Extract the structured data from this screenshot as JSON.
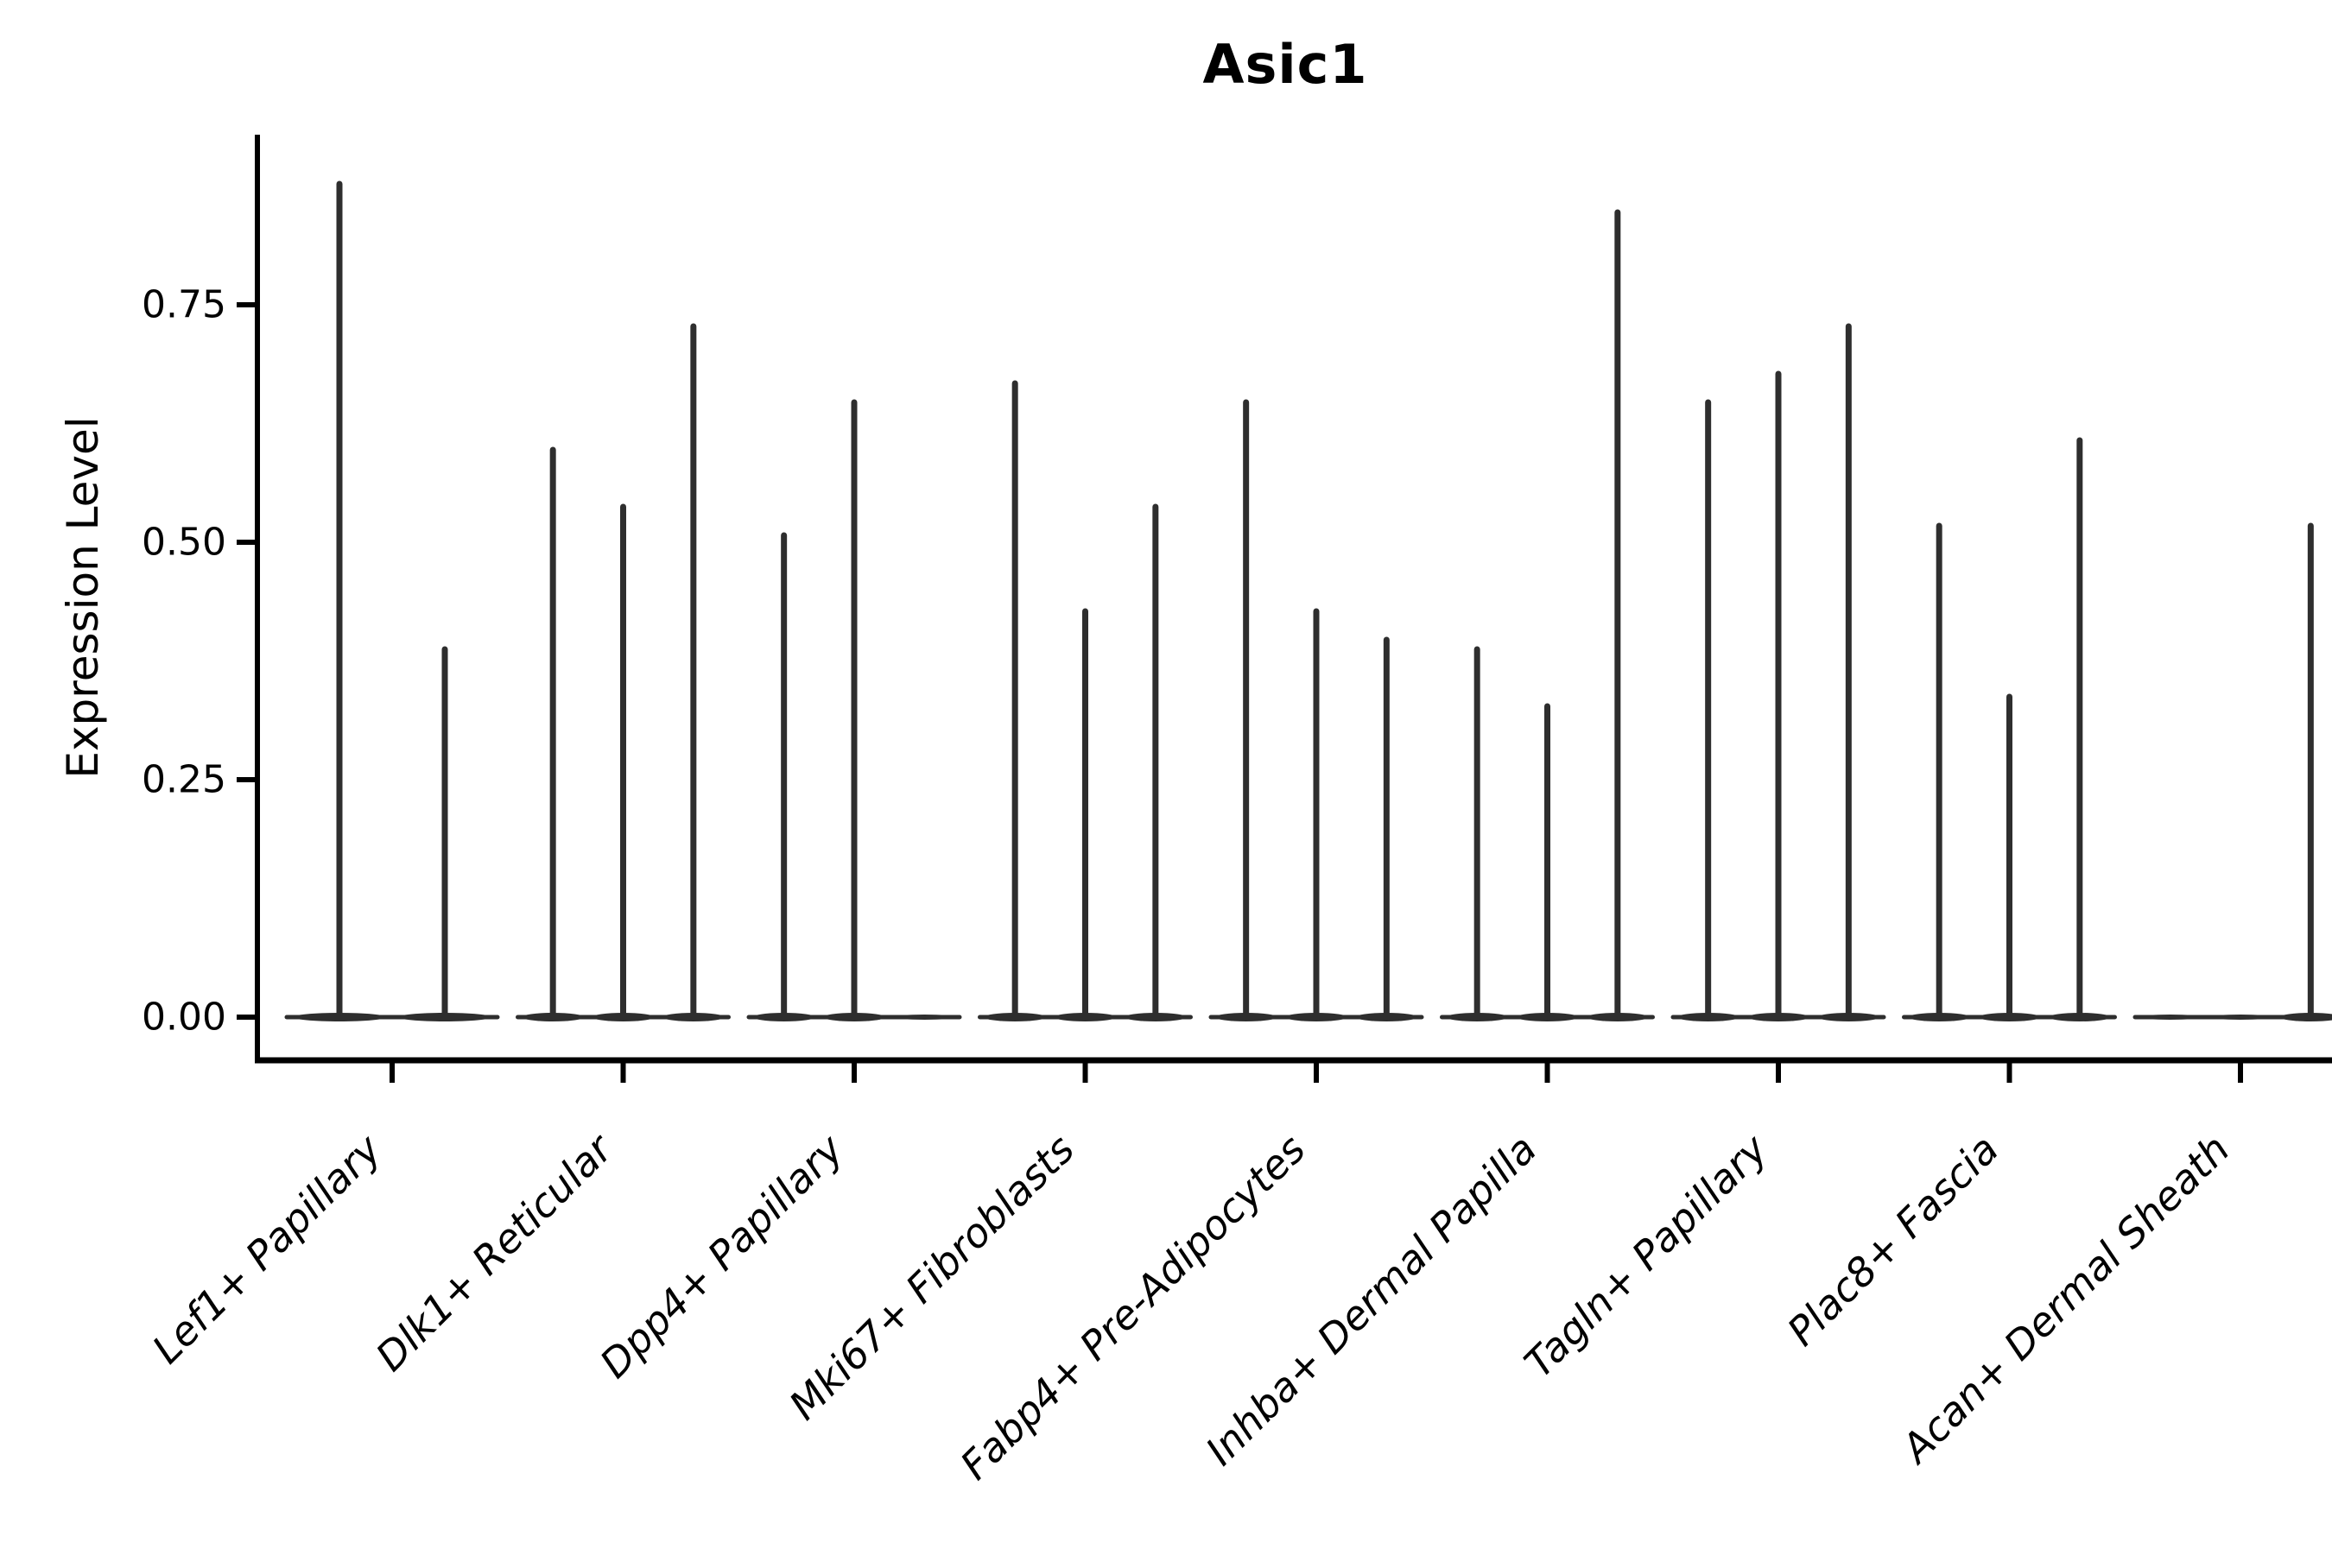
{
  "chart_data": {
    "type": "violin",
    "title": "Asic1",
    "ylabel": "Expression Level",
    "xlabel": "",
    "grid": false,
    "legend_position": "none",
    "ylim": [
      -0.045,
      0.93
    ],
    "yticks": [
      0.0,
      0.25,
      0.5,
      0.75
    ],
    "ytick_labels": [
      "0.00",
      "0.25",
      "0.50",
      "0.75"
    ],
    "style_note": "collapsed needle-thin violins on a flat baseline, black on white, no grid, axis lines left and bottom only, x labels rotated 45deg italic",
    "line_color": "#2e2e2e",
    "axis_color": "#000000",
    "categories": [
      "Lef1+ Papillary",
      "Dlk1+ Reticular",
      "Dpp4+ Papillary",
      "Mki67+ Fibroblasts",
      "Fabp4+ Pre-Adipocytes",
      "Inhba+ Dermal Papilla",
      "Tagln+ Papillary",
      "Plac8+ Fascia",
      "Acan+ Dermal Sheath"
    ],
    "groups": [
      {
        "category": "Lef1+ Papillary",
        "violin_peaks": [
          0.88,
          0.39
        ]
      },
      {
        "category": "Dlk1+ Reticular",
        "violin_peaks": [
          0.6,
          0.54,
          0.73
        ]
      },
      {
        "category": "Dpp4+ Papillary",
        "violin_peaks": [
          0.51,
          0.65,
          0.0
        ]
      },
      {
        "category": "Mki67+ Fibroblasts",
        "violin_peaks": [
          0.67,
          0.43,
          0.54
        ]
      },
      {
        "category": "Fabp4+ Pre-Adipocytes",
        "violin_peaks": [
          0.65,
          0.43,
          0.4
        ]
      },
      {
        "category": "Inhba+ Dermal Papilla",
        "violin_peaks": [
          0.39,
          0.33,
          0.85
        ]
      },
      {
        "category": "Tagln+ Papillary",
        "violin_peaks": [
          0.65,
          0.68,
          0.73
        ]
      },
      {
        "category": "Plac8+ Fascia",
        "violin_peaks": [
          0.52,
          0.34,
          0.61
        ]
      },
      {
        "category": "Acan+ Dermal Sheath",
        "violin_peaks": [
          0.0,
          0.0,
          0.52
        ]
      }
    ]
  }
}
